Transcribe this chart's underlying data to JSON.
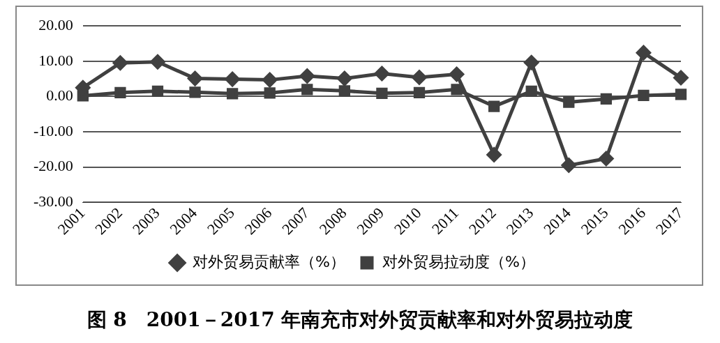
{
  "chart_data": {
    "type": "line",
    "title": "图 8　2001－2017 年南充市对外贸贡献率和对外贸易拉动度",
    "categories": [
      "2001",
      "2002",
      "2003",
      "2004",
      "2005",
      "2006",
      "2007",
      "2008",
      "2009",
      "2010",
      "2011",
      "2012",
      "2013",
      "2014",
      "2015",
      "2016",
      "2017"
    ],
    "series": [
      {
        "name": "对外贸易贡献率（%）",
        "color": "#404040",
        "marker": "diamond",
        "values": [
          2.5,
          9.5,
          9.8,
          5.1,
          4.9,
          4.7,
          5.8,
          5.1,
          6.5,
          5.4,
          6.3,
          -16.5,
          9.6,
          -19.5,
          -17.6,
          12.4,
          5.3
        ]
      },
      {
        "name": "对外贸易拉动度（%）",
        "color": "#404040",
        "marker": "square",
        "values": [
          0.2,
          1.1,
          1.5,
          1.2,
          0.8,
          1.0,
          2.0,
          1.6,
          0.9,
          1.1,
          2.0,
          -2.8,
          1.5,
          -1.6,
          -0.7,
          0.3,
          0.6
        ]
      }
    ],
    "ylim": [
      -30,
      20
    ],
    "yticks": [
      {
        "value": 20,
        "label": "20.00"
      },
      {
        "value": 10,
        "label": "10.00"
      },
      {
        "value": 0,
        "label": "0.00"
      },
      {
        "value": -10,
        "label": "-10.00"
      },
      {
        "value": -20,
        "label": "-20.00"
      },
      {
        "value": -30,
        "label": "-30.00"
      }
    ],
    "grid": "y",
    "legend": "bottom",
    "line_style": "solid"
  }
}
